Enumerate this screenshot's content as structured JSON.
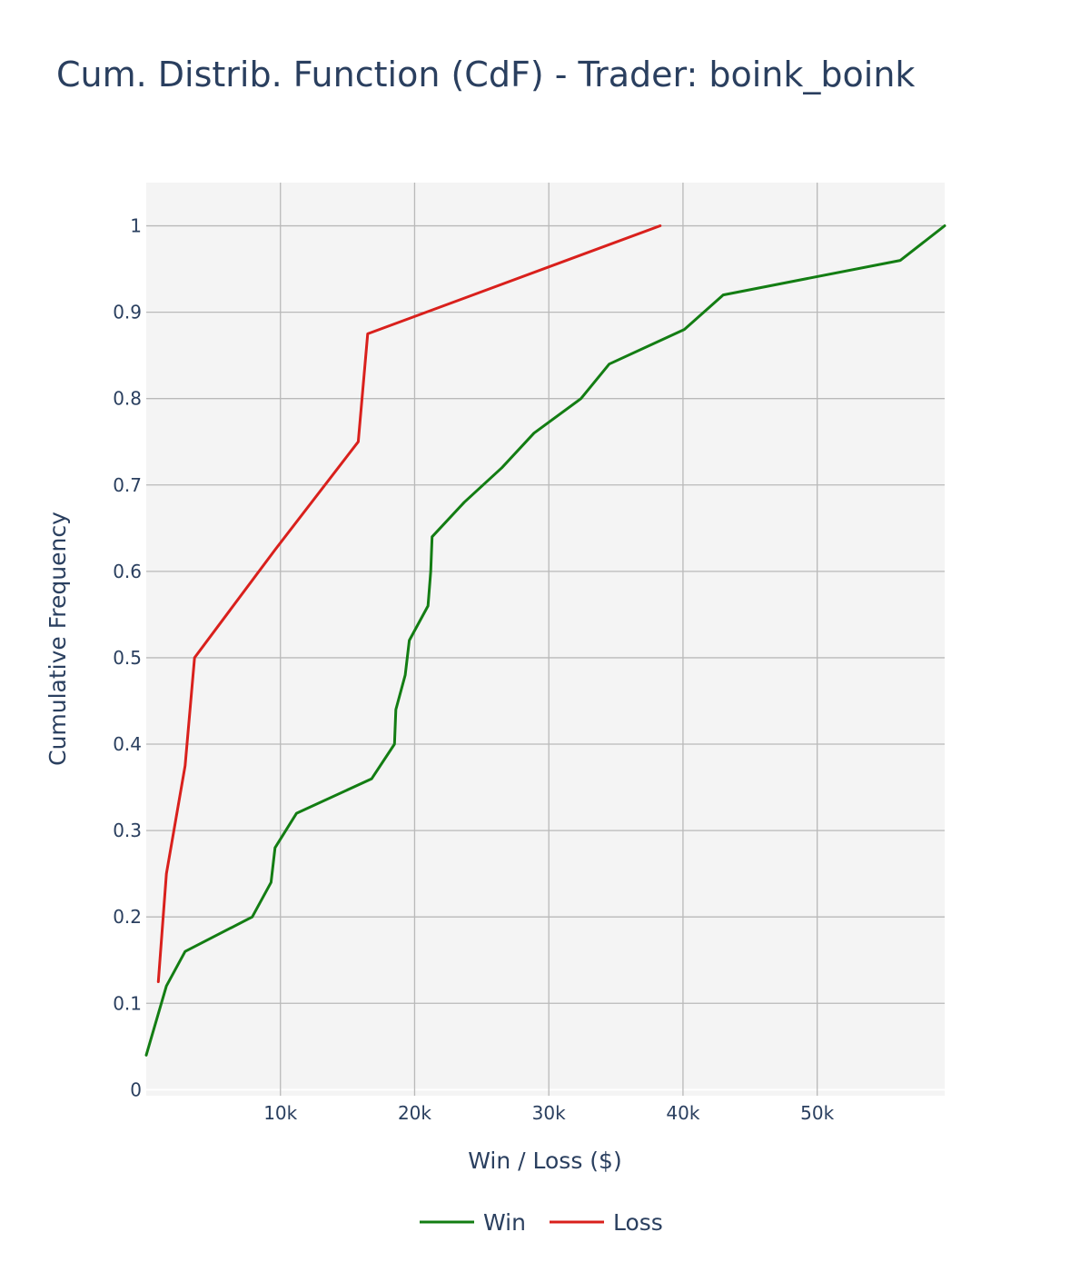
{
  "chart_data": {
    "type": "line",
    "title": "Cum. Distrib. Function (CdF) - Trader: boink_boink",
    "xlabel": "Win / Loss ($)",
    "ylabel": "Cumulative Frequency",
    "xlim": [
      0,
      59500
    ],
    "ylim": [
      -0.007,
      1.05
    ],
    "x_ticks": [
      {
        "value": 10000,
        "label": "10k"
      },
      {
        "value": 20000,
        "label": "20k"
      },
      {
        "value": 30000,
        "label": "30k"
      },
      {
        "value": 40000,
        "label": "40k"
      },
      {
        "value": 50000,
        "label": "50k"
      }
    ],
    "y_ticks": [
      {
        "value": 0,
        "label": "0"
      },
      {
        "value": 0.1,
        "label": "0.1"
      },
      {
        "value": 0.2,
        "label": "0.2"
      },
      {
        "value": 0.3,
        "label": "0.3"
      },
      {
        "value": 0.4,
        "label": "0.4"
      },
      {
        "value": 0.5,
        "label": "0.5"
      },
      {
        "value": 0.6,
        "label": "0.6"
      },
      {
        "value": 0.7,
        "label": "0.7"
      },
      {
        "value": 0.8,
        "label": "0.8"
      },
      {
        "value": 0.9,
        "label": "0.9"
      },
      {
        "value": 1,
        "label": "1"
      }
    ],
    "grid": true,
    "legend_position": "bottom-center",
    "series": [
      {
        "name": "Win",
        "color": "#137d13",
        "points": [
          [
            0,
            0.04
          ],
          [
            1500,
            0.12
          ],
          [
            2900,
            0.16
          ],
          [
            7900,
            0.2
          ],
          [
            9300,
            0.24
          ],
          [
            9600,
            0.28
          ],
          [
            11200,
            0.32
          ],
          [
            16800,
            0.36
          ],
          [
            18500,
            0.4
          ],
          [
            18600,
            0.44
          ],
          [
            19300,
            0.48
          ],
          [
            19600,
            0.52
          ],
          [
            21000,
            0.56
          ],
          [
            21200,
            0.6
          ],
          [
            21300,
            0.64
          ],
          [
            23700,
            0.68
          ],
          [
            26500,
            0.72
          ],
          [
            28900,
            0.76
          ],
          [
            32400,
            0.8
          ],
          [
            34500,
            0.84
          ],
          [
            40100,
            0.88
          ],
          [
            43000,
            0.92
          ],
          [
            56200,
            0.96
          ],
          [
            59500,
            1.0
          ]
        ]
      },
      {
        "name": "Loss",
        "color": "#d9201c",
        "points": [
          [
            900,
            0.125
          ],
          [
            1500,
            0.25
          ],
          [
            2900,
            0.375
          ],
          [
            3600,
            0.5
          ],
          [
            9600,
            0.625
          ],
          [
            15800,
            0.75
          ],
          [
            16500,
            0.875
          ],
          [
            38300,
            1.0
          ]
        ]
      }
    ]
  }
}
